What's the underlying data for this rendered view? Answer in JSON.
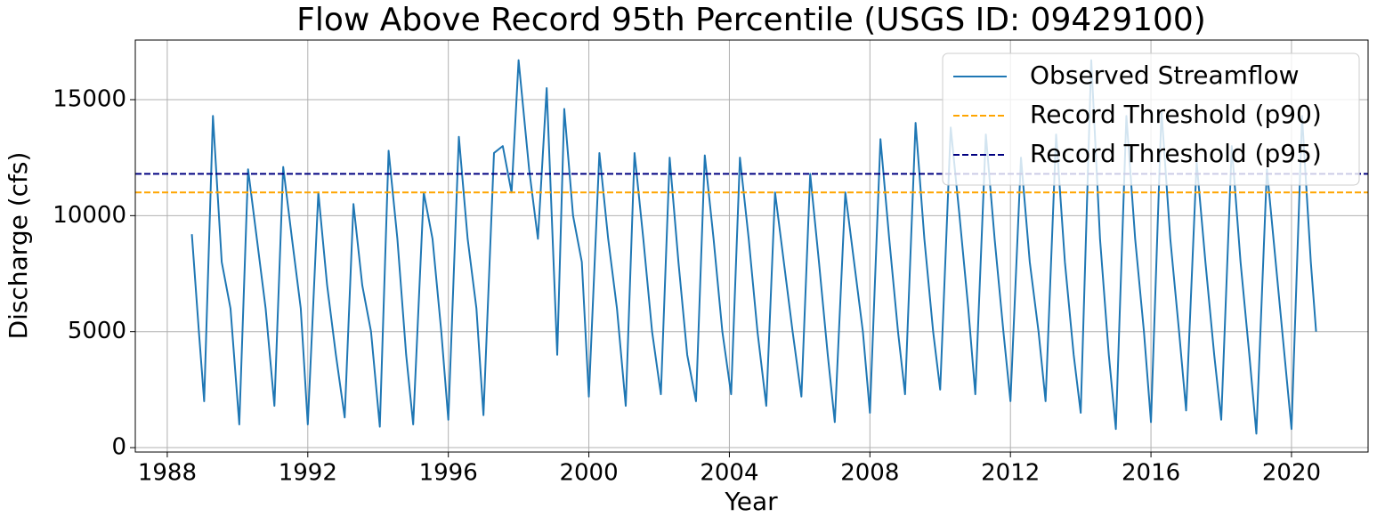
{
  "chart_data": {
    "type": "line",
    "title": "Flow Above Record 95th Percentile (USGS ID: 09429100)",
    "x_label": "Year",
    "y_label": "Discharge (cfs)",
    "xlim": [
      1987.09,
      2022.18
    ],
    "ylim": [
      -190,
      17570
    ],
    "xticks": [
      1988,
      1992,
      1996,
      2000,
      2004,
      2008,
      2012,
      2016,
      2020
    ],
    "yticks": [
      0,
      5000,
      10000,
      15000
    ],
    "grid": true,
    "legend": "upper right",
    "x": [
      1988.7,
      1988.9,
      1989.05,
      1989.3,
      1989.55,
      1989.8,
      1990.05,
      1990.3,
      1990.55,
      1990.8,
      1991.05,
      1991.3,
      1991.55,
      1991.8,
      1992.0,
      1992.3,
      1992.55,
      1992.8,
      1993.05,
      1993.3,
      1993.55,
      1993.8,
      1994.05,
      1994.3,
      1994.55,
      1994.8,
      1995.0,
      1995.3,
      1995.55,
      1995.8,
      1996.0,
      1996.3,
      1996.55,
      1996.8,
      1997.0,
      1997.3,
      1997.55,
      1997.8,
      1998.0,
      1998.3,
      1998.55,
      1998.8,
      1999.1,
      1999.3,
      1999.55,
      1999.8,
      2000.0,
      2000.3,
      2000.55,
      2000.8,
      2001.05,
      2001.3,
      2001.55,
      2001.8,
      2002.05,
      2002.3,
      2002.55,
      2002.8,
      2003.05,
      2003.3,
      2003.55,
      2003.8,
      2004.05,
      2004.3,
      2004.55,
      2004.8,
      2005.05,
      2005.3,
      2005.55,
      2005.8,
      2006.05,
      2006.3,
      2006.55,
      2006.8,
      2007.0,
      2007.3,
      2007.55,
      2007.8,
      2008.0,
      2008.3,
      2008.55,
      2008.8,
      2009.0,
      2009.3,
      2009.55,
      2009.8,
      2010.0,
      2010.3,
      2010.55,
      2010.8,
      2011.0,
      2011.3,
      2011.55,
      2011.8,
      2012.0,
      2012.3,
      2012.55,
      2012.8,
      2013.0,
      2013.3,
      2013.55,
      2013.8,
      2014.0,
      2014.3,
      2014.55,
      2014.8,
      2015.0,
      2015.3,
      2015.55,
      2015.8,
      2016.0,
      2016.3,
      2016.55,
      2016.8,
      2017.0,
      2017.3,
      2017.55,
      2017.8,
      2018.0,
      2018.3,
      2018.55,
      2018.8,
      2019.0,
      2019.3,
      2019.55,
      2019.8,
      2020.0,
      2020.3,
      2020.55,
      2020.7
    ],
    "series": [
      {
        "name": "Observed Streamflow",
        "color": "#1f77b4",
        "values": [
          9200,
          5000,
          2000,
          14300,
          8000,
          6000,
          1000,
          12000,
          9000,
          6000,
          1800,
          12100,
          9000,
          6000,
          1000,
          11000,
          7000,
          4000,
          1300,
          10500,
          7000,
          5000,
          900,
          12800,
          9000,
          4000,
          1000,
          11000,
          9000,
          5000,
          1200,
          13400,
          9000,
          6000,
          1400,
          12700,
          13000,
          11000,
          16700,
          12000,
          9000,
          15500,
          4000,
          14600,
          10000,
          8000,
          2200,
          12700,
          9000,
          6000,
          1800,
          12700,
          9000,
          5000,
          2300,
          12500,
          8000,
          4000,
          2000,
          12600,
          9000,
          5000,
          2300,
          12500,
          9000,
          5000,
          1800,
          11000,
          8000,
          5000,
          2200,
          11800,
          8000,
          4000,
          1100,
          11000,
          8000,
          5000,
          1500,
          13300,
          9000,
          5000,
          2300,
          14000,
          9000,
          5000,
          2500,
          13800,
          10000,
          6000,
          2300,
          13500,
          9000,
          5000,
          2000,
          12500,
          8000,
          5000,
          2000,
          13500,
          8000,
          4000,
          1500,
          16700,
          9000,
          4000,
          800,
          14300,
          9000,
          5000,
          1100,
          14500,
          9000,
          5000,
          1600,
          12300,
          8000,
          4000,
          1200,
          13000,
          8000,
          4000,
          600,
          12000,
          8000,
          4000,
          800,
          14300,
          8000,
          5000
        ]
      }
    ],
    "hlines": [
      {
        "name": "Record Threshold (p90)",
        "color": "#ffa500",
        "value": 11000
      },
      {
        "name": "Record Threshold (p95)",
        "color": "#000080",
        "value": 11800
      }
    ]
  }
}
